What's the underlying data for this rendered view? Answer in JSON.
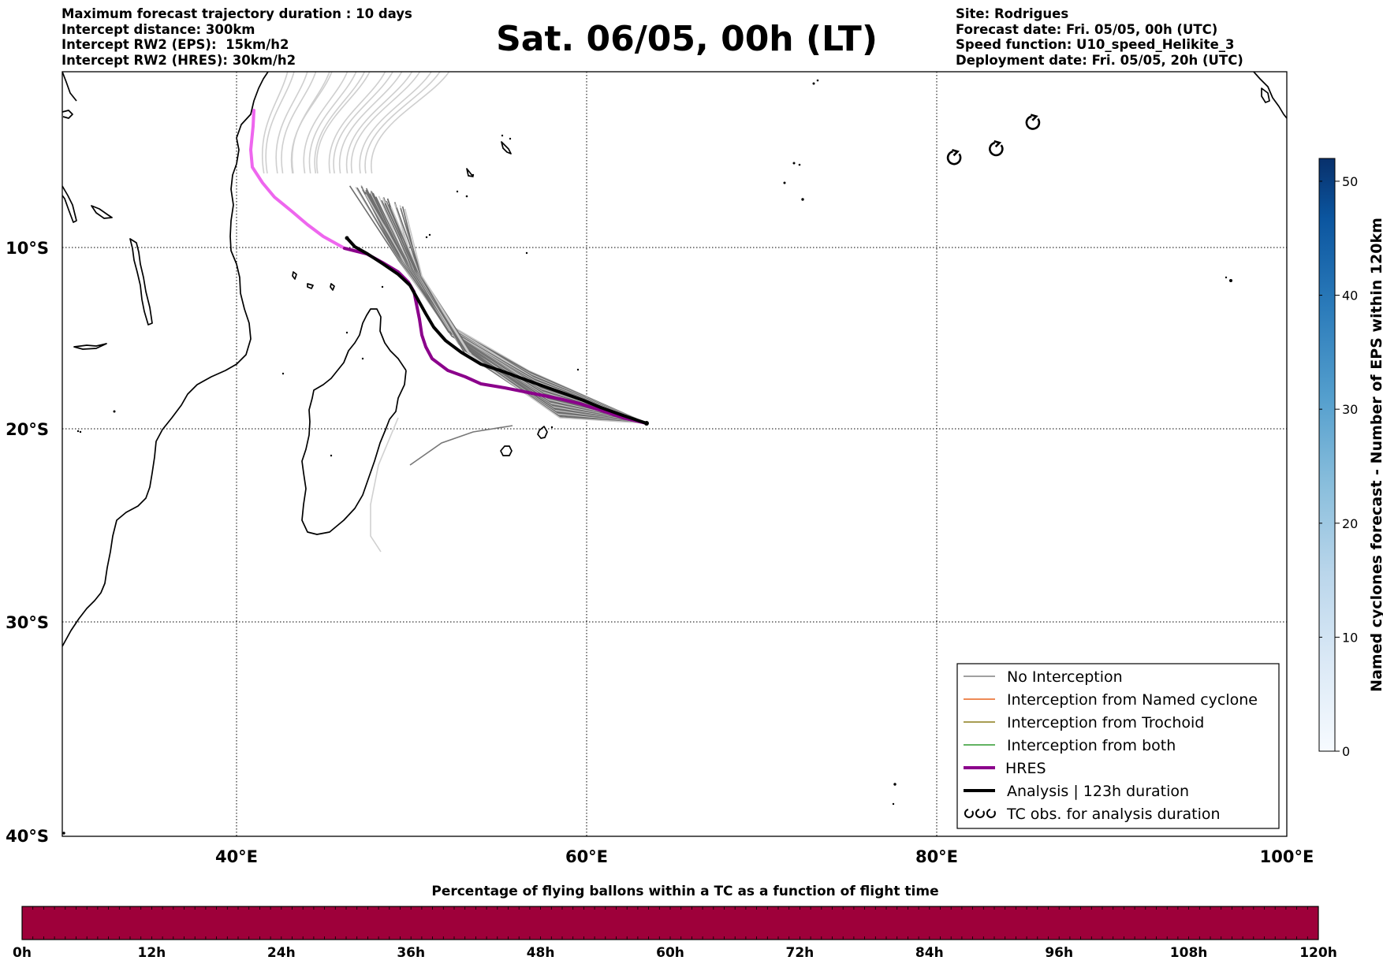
{
  "header_left": {
    "line1": "Maximum forecast trajectory duration : 10 days",
    "line2": "Intercept distance: 300km",
    "line3": "Intercept RW2 (EPS):  15km/h2",
    "line4": "Intercept RW2 (HRES): 30km/h2"
  },
  "title": "Sat. 06/05, 00h (LT)",
  "header_right": {
    "line1": "Site: Rodrigues",
    "line2": "Forecast date: Fri. 05/05, 00h (UTC)",
    "line3": "Speed function: U10_speed_Helikite_3",
    "line4": "Deployment date: Fri. 05/05, 20h (UTC)"
  },
  "map": {
    "lat_labels": [
      "10°S",
      "20°S",
      "30°S",
      "40°S"
    ],
    "lon_labels": [
      "40°E",
      "60°E",
      "80°E",
      "100°E"
    ],
    "lon_range": [
      30,
      100
    ],
    "lat_range": [
      0,
      -40
    ],
    "grid": "dotted",
    "launch_site": {
      "name": "Rodrigues",
      "lon": 63.4,
      "lat": -19.7
    }
  },
  "legend": {
    "position": "lower-right",
    "items": [
      {
        "label": "No Interception",
        "color": "#808080"
      },
      {
        "label": "Interception from Named cyclone",
        "color": "#e8641e"
      },
      {
        "label": "Interception from Trochoid",
        "color": "#8b7d1a"
      },
      {
        "label": "Interception from both",
        "color": "#2e9a2e"
      },
      {
        "label": "HRES",
        "color": "#8b008b"
      },
      {
        "label": "Analysis | 123h duration",
        "color": "#000000"
      },
      {
        "label": "TC obs. for analysis duration",
        "icon": "cyclone-symbol-icon"
      }
    ]
  },
  "right_colorbar": {
    "label": "Named cyclones forecast - Number of EPS within 120km",
    "ticks": [
      "0",
      "10",
      "20",
      "30",
      "40",
      "50"
    ],
    "range": [
      0,
      52
    ],
    "colormap": "Blues"
  },
  "bottom_colorbar": {
    "title": "Percentage of flying ballons within a TC as a function of flight time",
    "ticks": [
      "0h",
      "12h",
      "24h",
      "36h",
      "48h",
      "60h",
      "72h",
      "84h",
      "96h",
      "108h",
      "120h"
    ],
    "fill_color": "#9e003a"
  },
  "tc_observations": [
    {
      "lon": 81.0,
      "lat": -4.9
    },
    {
      "lon": 83.4,
      "lat": -4.4
    },
    {
      "lon": 85.5,
      "lat": -2.9
    }
  ],
  "chart_data": {
    "type": "line",
    "title": "Sat. 06/05, 00h (LT)",
    "xlabel": "",
    "ylabel": "",
    "xlim": [
      30,
      100
    ],
    "ylim": [
      -40,
      0
    ],
    "series": [
      {
        "name": "HRES",
        "color": "#8b008b",
        "lon": [
          63.4,
          60.5,
          57.5,
          54.0,
          52.2,
          51.3,
          50.6,
          50.3,
          49.9,
          48.9,
          47.2
        ],
        "lat": [
          -19.7,
          -19.1,
          -18.3,
          -17.8,
          -17.2,
          -16.7,
          -15.6,
          -14.1,
          -12.7,
          -11.4,
          -10.5
        ]
      },
      {
        "name": "Analysis | 123h duration",
        "color": "#000000",
        "lon": [
          63.4,
          60.0,
          56.5,
          53.5,
          51.6,
          50.6,
          49.6,
          48.0,
          46.4
        ],
        "lat": [
          -19.7,
          -18.8,
          -17.4,
          -16.1,
          -14.5,
          -13.0,
          -11.8,
          -10.7,
          -9.5
        ]
      },
      {
        "name": "HRES",
        "color": "#ee66ee",
        "lon": [
          47.2,
          45.0,
          43.0,
          41.5,
          41.0,
          40.8,
          41.0
        ],
        "lat": [
          -10.5,
          -9.5,
          -8.1,
          -6.4,
          -4.6,
          -3.0,
          -2.2
        ]
      }
    ]
  }
}
